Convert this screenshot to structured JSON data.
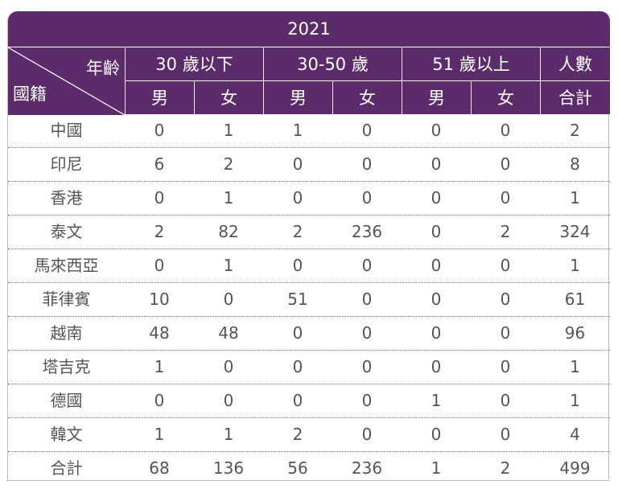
{
  "year": "2021",
  "header": {
    "age_label": "年齡",
    "nationality_label": "國籍",
    "groups": [
      "30 歲以下",
      "30-50 歲",
      "51 歲以上",
      "人數"
    ],
    "subheaders": [
      "男",
      "女",
      "男",
      "女",
      "男",
      "女",
      "合計"
    ]
  },
  "rows": [
    {
      "name": "中國",
      "values": [
        "0",
        "1",
        "1",
        "0",
        "0",
        "0",
        "2"
      ]
    },
    {
      "name": "印尼",
      "values": [
        "6",
        "2",
        "0",
        "0",
        "0",
        "0",
        "8"
      ]
    },
    {
      "name": "香港",
      "values": [
        "0",
        "1",
        "0",
        "0",
        "0",
        "0",
        "1"
      ]
    },
    {
      "name": "泰文",
      "values": [
        "2",
        "82",
        "2",
        "236",
        "0",
        "2",
        "324"
      ]
    },
    {
      "name": "馬來西亞",
      "values": [
        "0",
        "1",
        "0",
        "0",
        "0",
        "0",
        "1"
      ]
    },
    {
      "name": "菲律賓",
      "values": [
        "10",
        "0",
        "51",
        "0",
        "0",
        "0",
        "61"
      ]
    },
    {
      "name": "越南",
      "values": [
        "48",
        "48",
        "0",
        "0",
        "0",
        "0",
        "96"
      ]
    },
    {
      "name": "塔吉克",
      "values": [
        "1",
        "0",
        "0",
        "0",
        "0",
        "0",
        "1"
      ]
    },
    {
      "name": "德國",
      "values": [
        "0",
        "0",
        "0",
        "0",
        "1",
        "0",
        "1"
      ]
    },
    {
      "name": "韓文",
      "values": [
        "1",
        "1",
        "2",
        "0",
        "0",
        "0",
        "4"
      ]
    },
    {
      "name": "合計",
      "values": [
        "68",
        "136",
        "56",
        "236",
        "1",
        "2",
        "499"
      ]
    }
  ],
  "colors": {
    "header_bg": "#5b2b6a",
    "header_text": "#ffffff",
    "body_text": "#555555"
  }
}
